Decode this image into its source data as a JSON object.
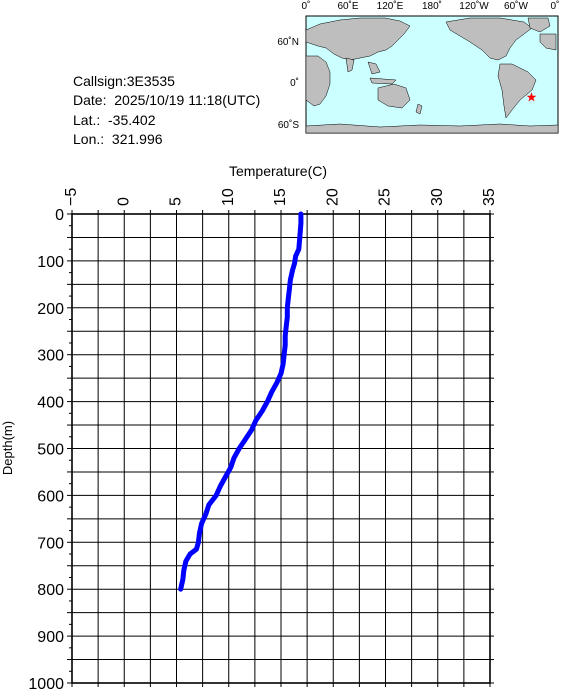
{
  "info": {
    "callsign": "Callsign:3E3535",
    "date": "Date:  2025/10/19 11:18(UTC)",
    "lat": "Lat.:  -35.402",
    "lon": "Lon.:  321.996"
  },
  "map": {
    "lon_labels": [
      "0˚",
      "60˚E",
      "120˚E",
      "180˚",
      "120˚W",
      "60˚W",
      "0˚"
    ],
    "lat_labels": [
      "60˚N",
      "0˚",
      "60˚S"
    ],
    "ocean_color": "#ccffff",
    "land_color": "#bebebe",
    "marker_color": "#ff0000",
    "marker_icon": "star-icon",
    "marker_position": {
      "lat": -35.402,
      "lon": 321.996
    }
  },
  "chart_data": {
    "type": "line",
    "title": "",
    "xlabel": "Temperature(C)",
    "ylabel": "Depth(m)",
    "xlim": [
      -5,
      35
    ],
    "ylim": [
      0,
      1000
    ],
    "y_inverted": true,
    "x_axis_position": "top",
    "grid": true,
    "x_ticks": [
      "-5",
      "0",
      "5",
      "10",
      "15",
      "20",
      "25",
      "30",
      "35"
    ],
    "y_ticks": [
      "0",
      "100",
      "200",
      "300",
      "400",
      "500",
      "600",
      "700",
      "800",
      "900",
      "1000"
    ],
    "line_color": "#0000ff",
    "series": [
      {
        "x": [
          16.9,
          16.9,
          16.8,
          16.7,
          16.4,
          16.3,
          16.1,
          15.9,
          15.8,
          15.7,
          15.6,
          15.6,
          15.5,
          15.4,
          15.4,
          15.3,
          15.2,
          15.0,
          14.6,
          14.1,
          13.7,
          13.2,
          12.6,
          12.2,
          11.6,
          11.0,
          10.5,
          10.2,
          9.7,
          9.2,
          8.8,
          8.1,
          7.8,
          7.4,
          7.2,
          7.1,
          6.9,
          6.3,
          5.9,
          5.7,
          5.6,
          5.5,
          5.4
        ],
        "y": [
          0,
          20,
          50,
          75,
          90,
          105,
          120,
          140,
          160,
          180,
          200,
          220,
          240,
          260,
          280,
          300,
          320,
          340,
          360,
          380,
          400,
          420,
          440,
          460,
          480,
          500,
          520,
          540,
          560,
          580,
          600,
          620,
          640,
          660,
          680,
          700,
          715,
          725,
          740,
          760,
          780,
          790,
          800
        ]
      }
    ]
  }
}
